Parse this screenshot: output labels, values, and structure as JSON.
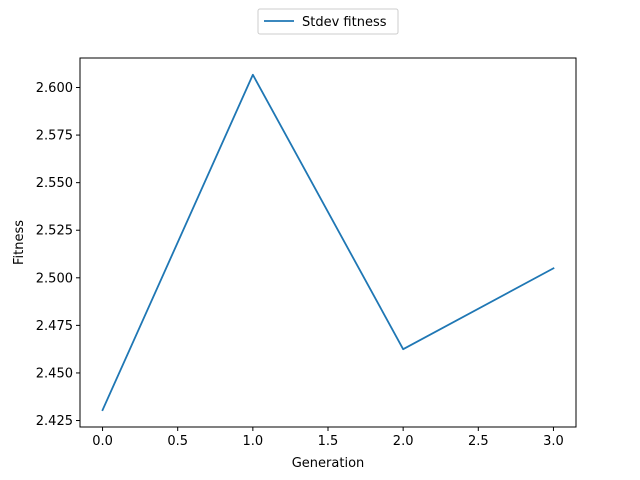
{
  "chart_data": {
    "type": "line",
    "title": "",
    "xlabel": "Generation",
    "ylabel": "Fitness",
    "xlim": [
      -0.15,
      3.15
    ],
    "ylim": [
      2.4216,
      2.6155
    ],
    "x_ticks": [
      0.0,
      0.5,
      1.0,
      1.5,
      2.0,
      2.5,
      3.0
    ],
    "x_tick_labels": [
      "0.0",
      "0.5",
      "1.0",
      "1.5",
      "2.0",
      "2.5",
      "3.0"
    ],
    "y_ticks": [
      2.425,
      2.45,
      2.475,
      2.5,
      2.525,
      2.55,
      2.575,
      2.6
    ],
    "y_tick_labels": [
      "2.425",
      "2.450",
      "2.475",
      "2.500",
      "2.525",
      "2.550",
      "2.575",
      "2.600"
    ],
    "grid": false,
    "legend_position": "top-center (outside plot)",
    "series": [
      {
        "name": "Stdev fitness",
        "color": "#1f77b4",
        "x": [
          0,
          1,
          2,
          3
        ],
        "y": [
          2.4305,
          2.6067,
          2.4625,
          2.505
        ]
      }
    ]
  }
}
